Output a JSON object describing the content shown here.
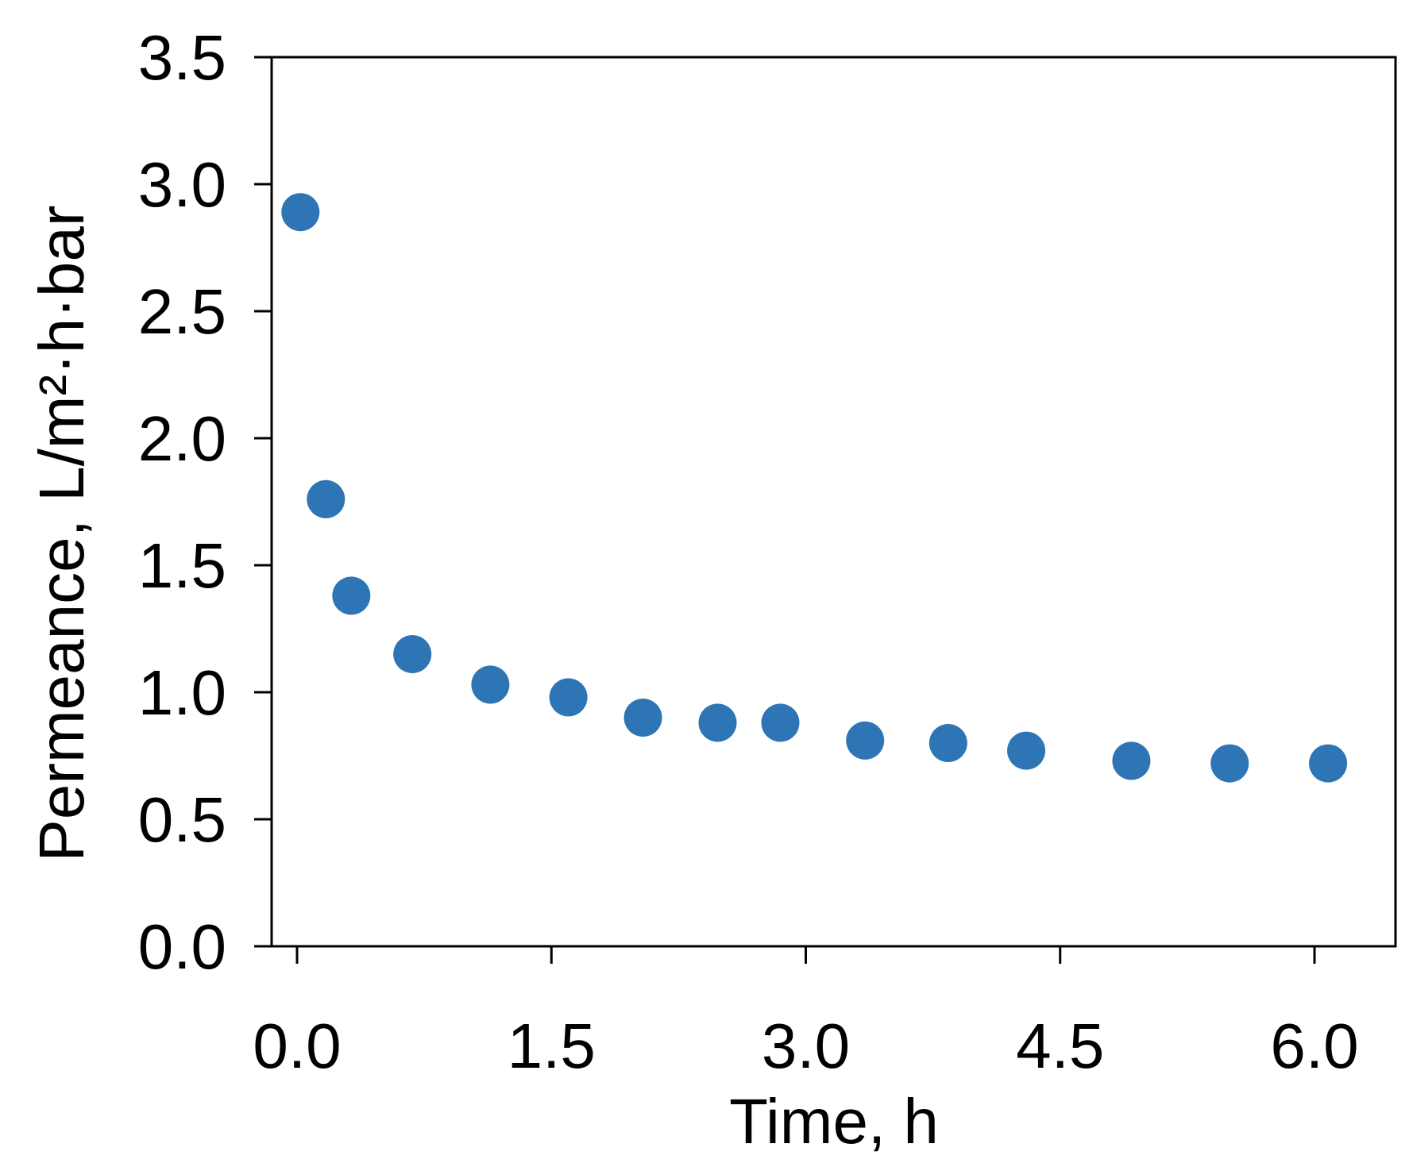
{
  "chart_data": {
    "type": "scatter",
    "title": "",
    "xlabel": "Time, h",
    "ylabel": "Permeance,  L/m²·h·bar",
    "xlim": [
      0,
      6.5
    ],
    "ylim": [
      0,
      3.5
    ],
    "x_ticks": [
      "0.0",
      "1.5",
      "3.0",
      "4.5",
      "6.0"
    ],
    "y_ticks": [
      "0.0",
      "0.5",
      "1.0",
      "1.5",
      "2.0",
      "2.5",
      "3.0",
      "3.5"
    ],
    "grid": false,
    "legend": "none",
    "marker_color": "#2E75B6",
    "series": [
      {
        "x": [
          0.02,
          0.17,
          0.32,
          0.68,
          1.14,
          1.6,
          2.04,
          2.48,
          2.85,
          3.35,
          3.84,
          4.3,
          4.92,
          5.5,
          6.08
        ],
        "y": [
          2.89,
          1.76,
          1.38,
          1.15,
          1.03,
          0.98,
          0.9,
          0.88,
          0.88,
          0.81,
          0.8,
          0.77,
          0.73,
          0.72,
          0.72
        ]
      }
    ]
  }
}
